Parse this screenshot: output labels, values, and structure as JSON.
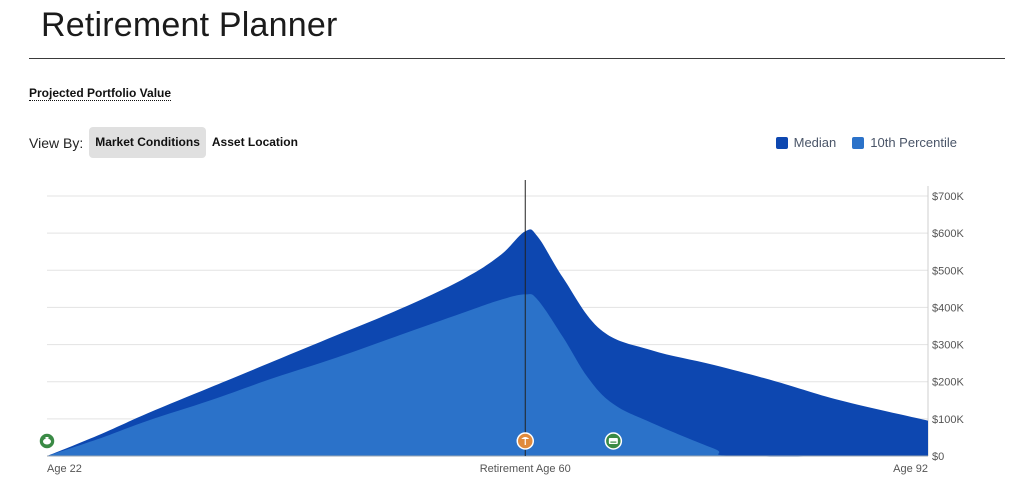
{
  "header": {
    "title": "Retirement Planner"
  },
  "section": {
    "label": "Projected Portfolio Value"
  },
  "view_by": {
    "label": "View By:",
    "options": [
      "Market Conditions",
      "Asset Location"
    ],
    "selected": "Market Conditions"
  },
  "legend": {
    "items": [
      {
        "label": "Median",
        "color": "#0d47b0"
      },
      {
        "label": "10th Percentile",
        "color": "#2b72c9"
      }
    ]
  },
  "markers": [
    {
      "icon": "piggy-bank-icon",
      "age": 22,
      "color": "#3a8a45"
    },
    {
      "icon": "palm-tree-icon",
      "age": 60,
      "color": "#e08a3c"
    },
    {
      "icon": "keyboard-icon",
      "age": 67,
      "color": "#3a8a45"
    }
  ],
  "chart_data": {
    "type": "area",
    "x_ticks": [
      "Age 22",
      "Retirement Age 60",
      "Age 92"
    ],
    "x_tick_ages": [
      22,
      60,
      92
    ],
    "xlim": [
      22,
      92
    ],
    "ylim": [
      0,
      700000
    ],
    "y_ticks": [
      {
        "value": 0,
        "label": "$0"
      },
      {
        "value": 100000,
        "label": "$100K"
      },
      {
        "value": 200000,
        "label": "$200K"
      },
      {
        "value": 300000,
        "label": "$300K"
      },
      {
        "value": 400000,
        "label": "$400K"
      },
      {
        "value": 500000,
        "label": "$500K"
      },
      {
        "value": 600000,
        "label": "$600K"
      },
      {
        "value": 700000,
        "label": "$700K"
      }
    ],
    "grid": true,
    "retirement_age": 60,
    "series": [
      {
        "name": "Median",
        "color": "#0d47b0",
        "x": [
          22,
          26,
          30,
          35,
          40,
          45,
          50,
          55,
          58,
          60,
          61,
          63,
          66,
          70,
          75,
          80,
          85,
          92
        ],
        "values": [
          0,
          55000,
          115000,
          185000,
          255000,
          325000,
          395000,
          475000,
          540000,
          605000,
          590000,
          480000,
          340000,
          285000,
          245000,
          200000,
          150000,
          95000
        ]
      },
      {
        "name": "10th Percentile",
        "color": "#2b72c9",
        "x": [
          22,
          26,
          30,
          35,
          40,
          45,
          50,
          55,
          58,
          60,
          61,
          63,
          65,
          67,
          70,
          75,
          77,
          92
        ],
        "values": [
          0,
          45000,
          95000,
          150000,
          210000,
          265000,
          325000,
          385000,
          420000,
          435000,
          420000,
          320000,
          210000,
          140000,
          90000,
          20000,
          0,
          0
        ]
      }
    ]
  }
}
